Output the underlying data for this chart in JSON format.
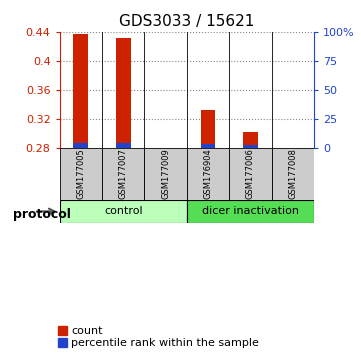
{
  "title": "GDS3033 / 15621",
  "samples": [
    "GSM177005",
    "GSM177007",
    "GSM177009",
    "GSM176904",
    "GSM177006",
    "GSM177008"
  ],
  "red_values": [
    0.437,
    0.432,
    0.28,
    0.332,
    0.302,
    0.28
  ],
  "blue_values": [
    0.2865,
    0.287,
    0.28,
    0.2855,
    0.2845,
    0.28
  ],
  "ymin": 0.28,
  "ymax": 0.44,
  "yticks": [
    0.28,
    0.32,
    0.36,
    0.4,
    0.44
  ],
  "right_yticks": [
    0,
    25,
    50,
    75,
    100
  ],
  "right_ytick_labels": [
    "0",
    "25",
    "50",
    "75",
    "100%"
  ],
  "groups": [
    {
      "label": "control",
      "indices": [
        0,
        1,
        2
      ],
      "color": "#bbffbb"
    },
    {
      "label": "dicer inactivation",
      "indices": [
        3,
        4,
        5
      ],
      "color": "#55dd55"
    }
  ],
  "protocol_label": "protocol",
  "bar_width": 0.35,
  "red_color": "#cc2200",
  "blue_color": "#2244cc",
  "bg_plot": "#ffffff",
  "bg_sample": "#cccccc",
  "title_fontsize": 11,
  "tick_fontsize": 8,
  "label_fontsize": 6,
  "legend_fontsize": 8,
  "proto_fontsize": 8,
  "gridline_color": "#888888"
}
